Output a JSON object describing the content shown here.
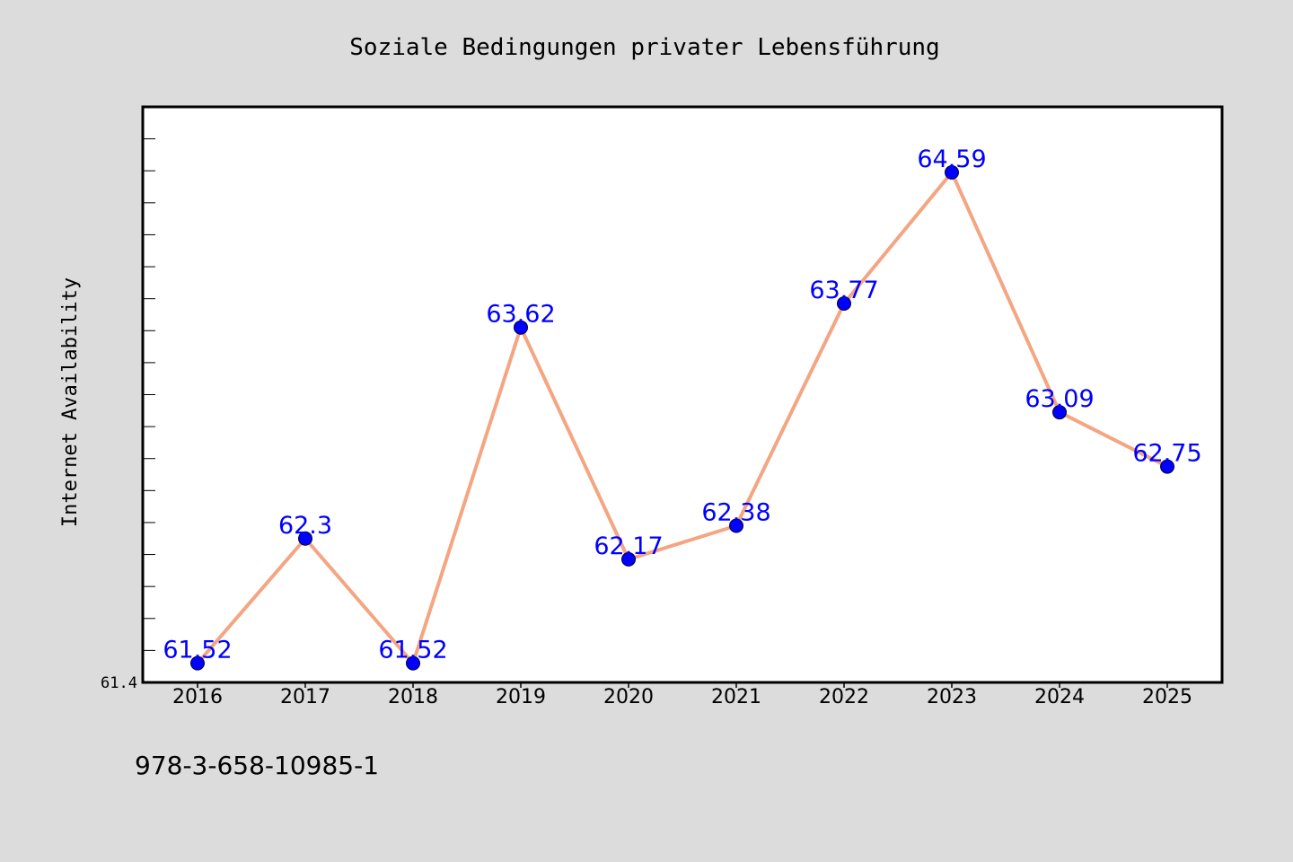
{
  "chart_data": {
    "type": "line",
    "title": "Soziale Bedingungen privater Lebensführung",
    "xlabel": "",
    "ylabel": "Internet Availability",
    "categories": [
      "2016",
      "2017",
      "2018",
      "2019",
      "2020",
      "2021",
      "2022",
      "2023",
      "2024",
      "2025"
    ],
    "series": [
      {
        "values": [
          61.52,
          62.3,
          61.52,
          63.62,
          62.17,
          62.38,
          63.77,
          64.59,
          63.09,
          62.75
        ],
        "labels": [
          "61.52",
          "62.3",
          "61.52",
          "63.62",
          "62.17",
          "62.38",
          "63.77",
          "64.59",
          "63.09",
          "62.75"
        ]
      }
    ],
    "ylim": [
      61.4,
      65.0
    ],
    "yticks": [
      "61.4"
    ],
    "grid": false,
    "line_color": "#f4a582",
    "marker_color": "#0000ff",
    "label_color": "#0000ff"
  },
  "footer_text": "978-3-658-10985-1"
}
